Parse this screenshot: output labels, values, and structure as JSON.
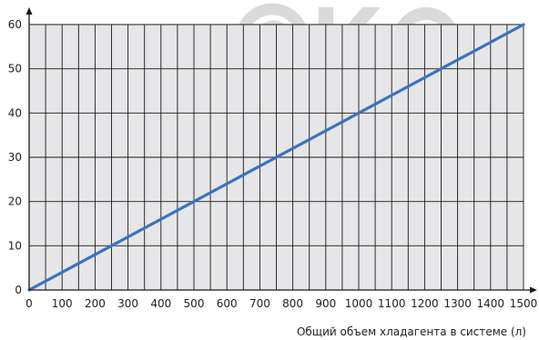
{
  "watermark": {
    "text": "©KO"
  },
  "chart_data": {
    "type": "line",
    "title": "",
    "xlabel": "Общий объем хладагента в системе (л)",
    "ylabel": "",
    "xlim": [
      0,
      1500
    ],
    "ylim": [
      0,
      60
    ],
    "x_ticks": [
      0,
      100,
      200,
      300,
      400,
      500,
      600,
      700,
      800,
      900,
      1000,
      1100,
      1200,
      1300,
      1400,
      1500
    ],
    "y_ticks": [
      0,
      10,
      20,
      30,
      40,
      50,
      60
    ],
    "grid": true,
    "series": [
      {
        "x": [
          0,
          1500
        ],
        "y": [
          0,
          60
        ],
        "color": "#3a73bf"
      }
    ],
    "colors": {
      "plot_background": "#e6e6e8",
      "grid": "#1a1a1a",
      "axis": "#1a1a1a"
    }
  }
}
